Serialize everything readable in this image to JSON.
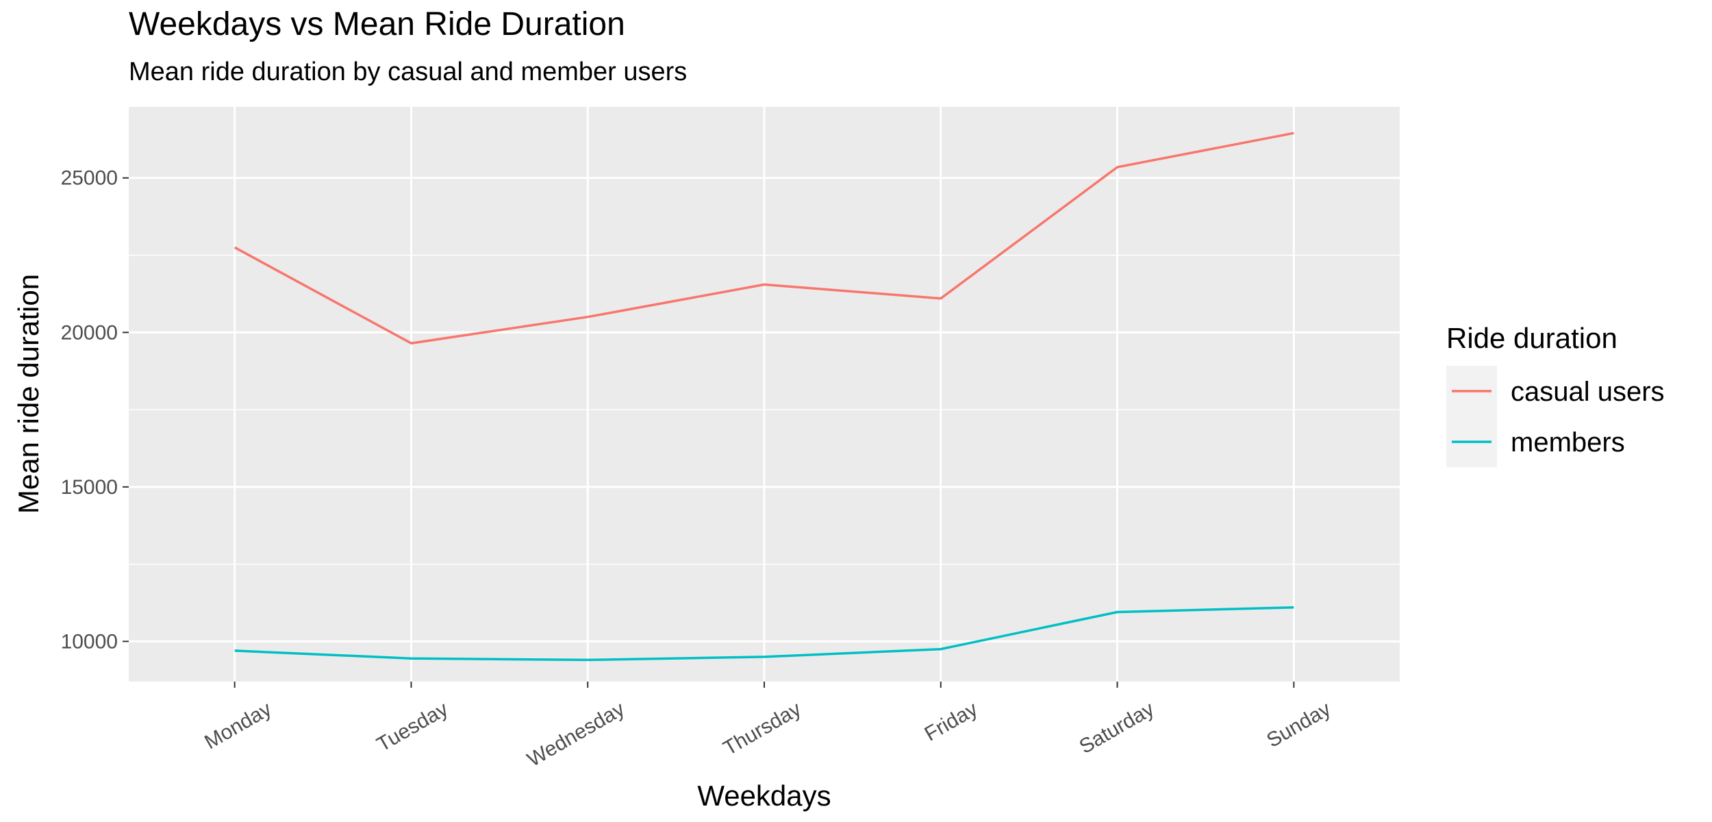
{
  "chart_data": {
    "type": "line",
    "title": "Weekdays vs Mean Ride Duration",
    "subtitle": "Mean ride duration by casual and member users",
    "xlabel": "Weekdays",
    "ylabel": "Mean ride duration",
    "categories": [
      "Monday",
      "Tuesday",
      "Wednesday",
      "Thursday",
      "Friday",
      "Saturday",
      "Sunday"
    ],
    "y_ticks": [
      10000,
      15000,
      20000,
      25000
    ],
    "ylim": [
      8700,
      27300
    ],
    "grid": true,
    "legend": {
      "title": "Ride duration",
      "position": "right"
    },
    "series": [
      {
        "name": "casual users",
        "color": "#F8766D",
        "values": [
          22750,
          19650,
          20500,
          21550,
          21100,
          25350,
          26450
        ]
      },
      {
        "name": "members",
        "color": "#00BFC4",
        "values": [
          9700,
          9450,
          9400,
          9500,
          9750,
          10950,
          11100
        ]
      }
    ]
  }
}
